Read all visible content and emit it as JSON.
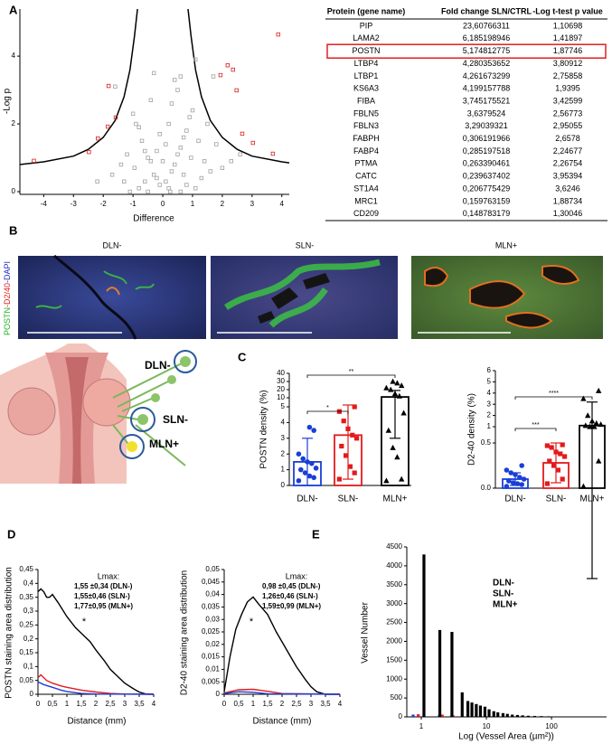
{
  "panels": {
    "A": "A",
    "B": "B",
    "C": "C",
    "D": "D",
    "E": "E"
  },
  "table": {
    "columns": [
      "Protein (gene name)",
      "Fold change SLN/CTRL",
      "-Log t-test p value"
    ],
    "rows": [
      [
        "PIP",
        "23,60766311",
        "1,10698"
      ],
      [
        "LAMA2",
        "6,185198946",
        "1,41897"
      ],
      [
        "POSTN",
        "5,174812775",
        "1,87746"
      ],
      [
        "LTBP4",
        "4,280353652",
        "3,80912"
      ],
      [
        "LTBP1",
        "4,261673299",
        "2,75858"
      ],
      [
        "KS6A3",
        "4,199157788",
        "1,9395"
      ],
      [
        "FIBA",
        "3,745175521",
        "3,42599"
      ],
      [
        "FBLN5",
        "3,6379524",
        "2,56773"
      ],
      [
        "FBLN3",
        "3,29039321",
        "2,95055"
      ],
      [
        "FABPH",
        "0,306191966",
        "2,6578"
      ],
      [
        "FABP4",
        "0,285197518",
        "2,24677"
      ],
      [
        "PTMA",
        "0,263390461",
        "2,26754"
      ],
      [
        "CATC",
        "0,239637402",
        "3,95394"
      ],
      [
        "ST1A4",
        "0,206775429",
        "3,6246"
      ],
      [
        "MRC1",
        "0,159763159",
        "1,88734"
      ],
      [
        "CD209",
        "0,148783179",
        "1,30046"
      ]
    ],
    "highlight_row": 2,
    "highlight_color": "#e02020"
  },
  "micrographs": {
    "label_parts": [
      {
        "text": "POSTN",
        "color": "#22b022"
      },
      {
        "text": "-D2/40",
        "color": "#e02020"
      },
      {
        "text": "-DAPI",
        "color": "#2030c0"
      }
    ],
    "titles": [
      "DLN-",
      "SLN-",
      "MLN+"
    ]
  },
  "illustration": {
    "labels": [
      "DLN-",
      "SLN-",
      "MLN+"
    ],
    "color": "#3a6cc0"
  },
  "chart_data": [
    {
      "type": "scatter",
      "x_label": "Difference",
      "y_label": "-Log p",
      "xlim": [
        -4.8,
        4.25
      ],
      "ylim": [
        -0.08,
        5.39
      ],
      "xticks": [
        -4,
        -3,
        -2,
        -1,
        0,
        1,
        2,
        3,
        4
      ],
      "yticks": [
        0,
        2,
        4
      ],
      "series": [
        {
          "color": "#a0a0a0",
          "x": [
            -0.1,
            0.1,
            0.2,
            -0.2,
            0.3,
            -0.3,
            0.4,
            -0.4,
            0.5,
            -0.5,
            0.6,
            -0.6,
            0.7,
            -0.7,
            0.8,
            -0.8,
            0.9,
            -0.9,
            1.0,
            -1.0,
            0.0,
            0.1,
            -0.1,
            0.2,
            -0.2,
            0.3,
            0.5,
            -0.4,
            0.6,
            1.1,
            0.4,
            -0.3,
            1.2,
            -1.2,
            1.4,
            -1.4,
            1.6,
            -1.7,
            2.0,
            2.3,
            2.6,
            -2.2,
            0.8,
            -0.8,
            1.3,
            -1.3,
            0.7,
            -0.6,
            1.5,
            1.8,
            1.7,
            -1.6,
            0.95,
            -0.95,
            0.25,
            -0.5,
            0.6,
            1.1,
            -1.1
          ],
          "y": [
            0.2,
            0.3,
            0.1,
            0.4,
            0.6,
            0.5,
            0.8,
            0.9,
            1.1,
            1.0,
            1.3,
            1.2,
            1.6,
            1.5,
            1.8,
            1.9,
            2.2,
            2.0,
            2.4,
            2.3,
            0.9,
            1.4,
            1.7,
            2.0,
            1.2,
            2.6,
            3.0,
            2.7,
            3.4,
            3.9,
            3.3,
            3.5,
            1.5,
            1.1,
            0.9,
            0.8,
            0.6,
            0.5,
            0.7,
            0.9,
            1.1,
            0.3,
            0.2,
            0.1,
            0.4,
            0.3,
            0.5,
            0.3,
            2.0,
            1.4,
            3.4,
            3.1,
            1.0,
            0.7,
            0.0,
            0.0,
            0.0,
            0.1,
            0.0
          ]
        },
        {
          "color": "#d62020",
          "x": [
            -4.33,
            -2.48,
            -2.18,
            -1.85,
            -1.82,
            -1.58,
            3.88,
            2.18,
            2.36,
            2.48,
            1.94,
            2.67,
            3.03,
            3.7
          ],
          "y": [
            0.91,
            1.17,
            1.57,
            1.92,
            3.12,
            2.19,
            4.64,
            3.73,
            3.6,
            2.99,
            3.44,
            1.71,
            1.44,
            1.12
          ]
        }
      ],
      "lines": [
        {
          "color": "#000000",
          "x": [
            -4.8,
            -4,
            -3,
            -2.5,
            -2,
            -1.6,
            -1.3,
            -1.1,
            -0.95,
            -0.85
          ],
          "y": [
            0.8,
            0.88,
            1.05,
            1.25,
            1.6,
            2.1,
            2.8,
            3.6,
            4.6,
            5.39
          ]
        },
        {
          "color": "#000000",
          "x": [
            0.85,
            0.95,
            1.1,
            1.3,
            1.6,
            2,
            2.5,
            3,
            4,
            4.25
          ],
          "y": [
            5.39,
            4.6,
            3.6,
            2.8,
            2.1,
            1.6,
            1.25,
            1.05,
            0.88,
            0.85
          ]
        }
      ]
    },
    {
      "type": "bar",
      "y_label": "POSTN density (%)",
      "categories": [
        "DLN-",
        "SLN-",
        "MLN+"
      ],
      "values": [
        1.5,
        3.2,
        11
      ],
      "errors": [
        1.5,
        2.8,
        8
      ],
      "colors": [
        "#1a3fd6",
        "#e31a1c",
        "#000000"
      ],
      "markers": [
        "circle",
        "square",
        "triangle"
      ],
      "points": [
        [
          0.3,
          0.5,
          0.6,
          0.8,
          1.0,
          1.1,
          1.4,
          1.5,
          1.7,
          2.0,
          3.5,
          3.7
        ],
        [
          0.4,
          0.8,
          1.2,
          1.9,
          2.5,
          3.0,
          3.2,
          3.6,
          4.1,
          4.7,
          5.0
        ],
        [
          0.3,
          0.4,
          1.8,
          2.4,
          3.5,
          4.6,
          12,
          15,
          20,
          22,
          25,
          28,
          30
        ]
      ],
      "ylim": [
        0,
        40
      ],
      "yticks": [
        0,
        1,
        2,
        3,
        4,
        5,
        10,
        20,
        30,
        40
      ],
      "axis_break": [
        5,
        10
      ],
      "significance": [
        {
          "from": 0,
          "to": 1,
          "label": "*"
        },
        {
          "from": 0,
          "to": 2,
          "label": "**"
        }
      ]
    },
    {
      "type": "bar",
      "y_label": "D2-40 density (%)",
      "categories": [
        "DLN-",
        "SLN-",
        "MLN+"
      ],
      "values": [
        0.1,
        0.28,
        1.1
      ],
      "errors": [
        0.07,
        0.22,
        2.1
      ],
      "colors": [
        "#1a3fd6",
        "#e31a1c",
        "#000000"
      ],
      "markers": [
        "circle",
        "square",
        "triangle"
      ],
      "points": [
        [
          0.02,
          0.04,
          0.05,
          0.06,
          0.08,
          0.1,
          0.12,
          0.15,
          0.17,
          0.2,
          0.25
        ],
        [
          0.05,
          0.1,
          0.2,
          0.25,
          0.3,
          0.35,
          0.38,
          0.4,
          0.45,
          0.47,
          0.48
        ],
        [
          0.02,
          0.3,
          1.0,
          1.0,
          1.1,
          1.2,
          1.3,
          1.5,
          2.0,
          3.5,
          4.2
        ]
      ],
      "ylim": [
        0,
        6
      ],
      "yticks": [
        {
          "value": 0,
          "label": "0.0"
        },
        {
          "value": 0.5,
          "label": "0.5"
        },
        1,
        2,
        3,
        4,
        5,
        6
      ],
      "axis_break": [
        0.5,
        1
      ],
      "significance": [
        {
          "from": 0,
          "to": 1,
          "label": "***"
        },
        {
          "from": 0,
          "to": 2,
          "label": "****"
        }
      ]
    },
    {
      "type": "line",
      "x_label": "Distance (mm)",
      "y_label": "POSTN staining area distribution",
      "xlim": [
        0,
        4
      ],
      "ylim": [
        0,
        0.45
      ],
      "xticks": [
        0,
        {
          "value": 0.5,
          "label": "0,5"
        },
        1,
        {
          "value": 1.5,
          "label": "1,5"
        },
        2,
        {
          "value": 2.5,
          "label": "2,5"
        },
        3,
        {
          "value": 3.5,
          "label": "3,5"
        },
        4
      ],
      "yticks": [
        0,
        {
          "value": 0.05,
          "label": "0,05"
        },
        {
          "value": 0.1,
          "label": "0,1"
        },
        {
          "value": 0.15,
          "label": "0,15"
        },
        {
          "value": 0.2,
          "label": "0,2"
        },
        {
          "value": 0.25,
          "label": "0,25"
        },
        {
          "value": 0.3,
          "label": "0,3"
        },
        {
          "value": 0.35,
          "label": "0,35"
        },
        {
          "value": 0.4,
          "label": "0,4"
        },
        {
          "value": 0.45,
          "label": "0,45"
        }
      ],
      "series": [
        {
          "color": "#000000",
          "x": [
            0,
            0.1,
            0.2,
            0.3,
            0.4,
            0.5,
            0.7,
            1.0,
            1.3,
            1.5,
            1.8,
            2.0,
            2.3,
            2.5,
            2.8,
            3.0,
            3.3,
            3.5,
            3.7,
            4.0
          ],
          "values": [
            0.37,
            0.38,
            0.37,
            0.35,
            0.35,
            0.36,
            0.33,
            0.28,
            0.24,
            0.22,
            0.19,
            0.16,
            0.12,
            0.09,
            0.06,
            0.04,
            0.02,
            0.008,
            0.002,
            0
          ]
        },
        {
          "color": "#e31a1c",
          "x": [
            0,
            0.1,
            0.3,
            0.5,
            0.8,
            1.0,
            1.5,
            2.0,
            2.5,
            3.0,
            4.0
          ],
          "values": [
            0.06,
            0.07,
            0.05,
            0.04,
            0.03,
            0.025,
            0.015,
            0.008,
            0.003,
            0.001,
            0
          ]
        },
        {
          "color": "#1a3fd6",
          "x": [
            0,
            0.2,
            0.5,
            0.8,
            1.0,
            1.5,
            2.0,
            4.0
          ],
          "values": [
            0.045,
            0.035,
            0.025,
            0.015,
            0.01,
            0.003,
            0.001,
            0
          ]
        }
      ],
      "annotation": {
        "title": "Lmax:",
        "lines": [
          {
            "text": "1,55 ±0,34 (DLN-)",
            "color": "#1a3fd6"
          },
          {
            "text": "1,55±0,46 (SLN-)",
            "color": "#e31a1c"
          },
          {
            "text": "1,77±0,95 (MLN+)",
            "color": "#000000"
          }
        ],
        "star": "*"
      }
    },
    {
      "type": "line",
      "x_label": "Distance (mm)",
      "y_label": "D2-40 staining area distribution",
      "xlim": [
        0,
        4
      ],
      "ylim": [
        0,
        0.05
      ],
      "xticks": [
        0,
        {
          "value": 0.5,
          "label": "0,5"
        },
        1,
        {
          "value": 1.5,
          "label": "1,5"
        },
        2,
        {
          "value": 2.5,
          "label": "2,5"
        },
        3,
        {
          "value": 3.5,
          "label": "3,5"
        },
        4
      ],
      "yticks": [
        0,
        {
          "value": 0.005,
          "label": "0,005"
        },
        {
          "value": 0.01,
          "label": "0,01"
        },
        {
          "value": 0.015,
          "label": "0,015"
        },
        {
          "value": 0.02,
          "label": "0,02"
        },
        {
          "value": 0.025,
          "label": "0,025"
        },
        {
          "value": 0.03,
          "label": "0,03"
        },
        {
          "value": 0.035,
          "label": "0,035"
        },
        {
          "value": 0.04,
          "label": "0,04"
        },
        {
          "value": 0.045,
          "label": "0,045"
        },
        {
          "value": 0.05,
          "label": "0,05"
        }
      ],
      "series": [
        {
          "color": "#000000",
          "x": [
            0,
            0.2,
            0.4,
            0.6,
            0.8,
            1.0,
            1.2,
            1.5,
            1.8,
            2.0,
            2.3,
            2.5,
            2.8,
            3.0,
            3.2,
            3.5,
            4.0
          ],
          "values": [
            0.001,
            0.015,
            0.026,
            0.032,
            0.037,
            0.039,
            0.036,
            0.032,
            0.025,
            0.021,
            0.015,
            0.011,
            0.006,
            0.003,
            0.001,
            0,
            0
          ]
        },
        {
          "color": "#e31a1c",
          "x": [
            0,
            0.5,
            1.0,
            1.5,
            2.0,
            4.0
          ],
          "values": [
            0.0005,
            0.0018,
            0.002,
            0.0012,
            0.0003,
            0
          ]
        },
        {
          "color": "#1a3fd6",
          "x": [
            0,
            0.5,
            1.0,
            1.5,
            4.0
          ],
          "values": [
            0.0003,
            0.001,
            0.0008,
            0.0002,
            0
          ]
        }
      ],
      "annotation": {
        "title": "Lmax:",
        "lines": [
          {
            "text": "0,98 ±0,45 (DLN-)",
            "color": "#1a3fd6"
          },
          {
            "text": "1,26±0,46 (SLN-)",
            "color": "#e31a1c"
          },
          {
            "text": "1,59±0,99 (MLN+)",
            "color": "#000000"
          }
        ],
        "star": "*"
      }
    },
    {
      "type": "bar",
      "x_label": "Log (Vessel Area (µm²))",
      "y_label": "Vessel Number",
      "x_scale": "log",
      "xlim": [
        0.6,
        700
      ],
      "ylim": [
        0,
        4500
      ],
      "xticks": [
        1,
        10,
        100
      ],
      "yticks": [
        0,
        500,
        1000,
        1500,
        2000,
        2500,
        3000,
        3500,
        4000,
        4500
      ],
      "series": [
        {
          "name": "DLN-",
          "color": "#1a3fd6",
          "x": [
            0.75,
            1.9,
            2.9
          ],
          "values": [
            60,
            50,
            30
          ]
        },
        {
          "name": "SLN-",
          "color": "#e31a1c",
          "x": [
            0.9,
            2.1,
            3.1
          ],
          "values": [
            70,
            60,
            40
          ]
        },
        {
          "name": "MLN+",
          "color": "#000000",
          "x": [
            1.1,
            1.93,
            2.96,
            4.25,
            5.2,
            6.0,
            7.0,
            8.1,
            9.5,
            11,
            13,
            15,
            18,
            21,
            25,
            30,
            36,
            44,
            55,
            70,
            90,
            120,
            160,
            220,
            300,
            420,
            560
          ],
          "values": [
            4300,
            2300,
            2250,
            650,
            420,
            380,
            340,
            300,
            270,
            200,
            150,
            120,
            100,
            80,
            60,
            50,
            40,
            30,
            25,
            20,
            15,
            12,
            10,
            8,
            6,
            5,
            4
          ]
        }
      ]
    }
  ]
}
